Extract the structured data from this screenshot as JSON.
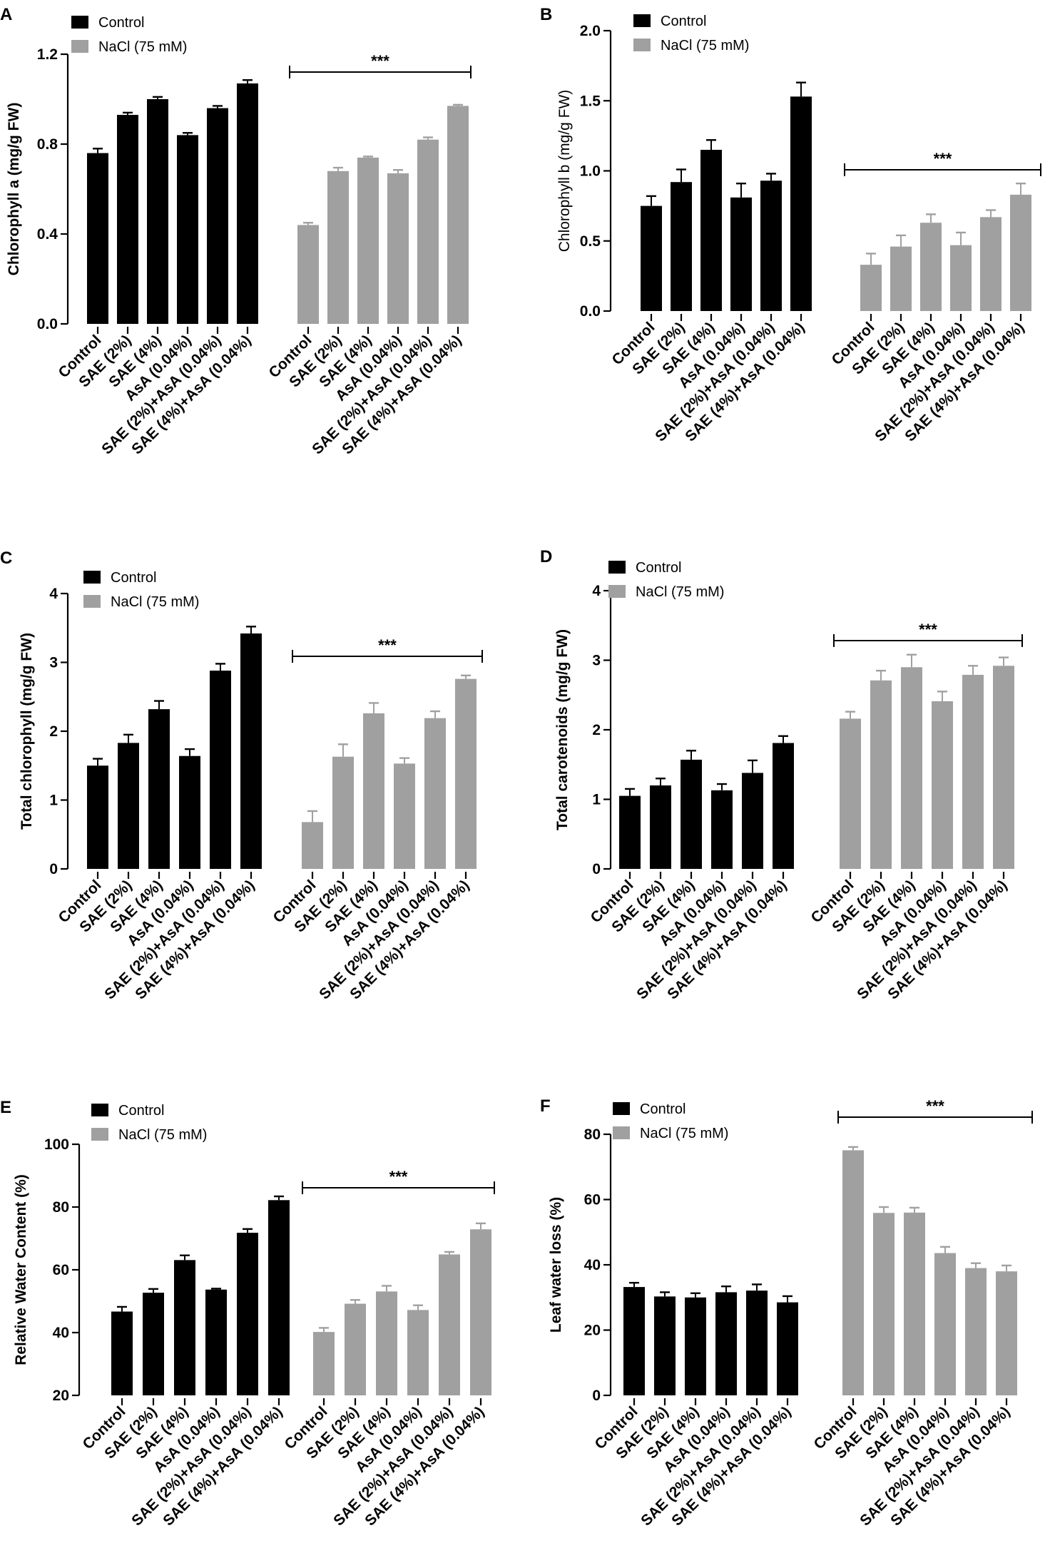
{
  "chart_data": [
    {
      "type": "bar",
      "panel": "A",
      "ylabel": "Chlorophyll a (mg/g FW)",
      "ylim": [
        0,
        1.2
      ],
      "yticks": [
        "0.0",
        "0.4",
        "0.8",
        "1.2"
      ],
      "categories": [
        "Control",
        "SAE (2%)",
        "SAE (4%)",
        "AsA (0.04%)",
        "SAE (2%)+AsA (0.04%)",
        "SAE (4%)+AsA (0.04%)"
      ],
      "series": [
        {
          "name": "Control",
          "color": "#000000",
          "values": [
            0.76,
            0.93,
            1.0,
            0.84,
            0.96,
            1.07
          ],
          "errors": [
            0.02,
            0.01,
            0.01,
            0.01,
            0.01,
            0.015
          ]
        },
        {
          "name": "NaCl (75 mM)",
          "color": "#a0a0a0",
          "values": [
            0.44,
            0.68,
            0.74,
            0.67,
            0.82,
            0.97
          ],
          "errors": [
            0.01,
            0.015,
            0.005,
            0.015,
            0.01,
            0.005
          ]
        }
      ],
      "significance": "***",
      "legend": "top-left"
    },
    {
      "type": "bar",
      "panel": "B",
      "ylabel": "Chlorophyll b (mg/g FW)",
      "ylim": [
        0,
        2.0
      ],
      "yticks": [
        "0.0",
        "0.5",
        "1.0",
        "1.5",
        "2.0"
      ],
      "categories": [
        "Control",
        "SAE (2%)",
        "SAE (4%)",
        "AsA (0.04%)",
        "SAE (2%)+AsA (0.04%)",
        "SAE (4%)+AsA (0.04%)"
      ],
      "series": [
        {
          "name": "Control",
          "color": "#000000",
          "values": [
            0.75,
            0.92,
            1.15,
            0.81,
            0.93,
            1.53
          ],
          "errors": [
            0.07,
            0.09,
            0.07,
            0.1,
            0.05,
            0.1
          ]
        },
        {
          "name": "NaCl (75 mM)",
          "color": "#a0a0a0",
          "values": [
            0.33,
            0.46,
            0.63,
            0.47,
            0.67,
            0.83
          ],
          "errors": [
            0.08,
            0.08,
            0.06,
            0.09,
            0.05,
            0.08
          ]
        }
      ],
      "significance": "***",
      "legend": "top-left"
    },
    {
      "type": "bar",
      "panel": "C",
      "ylabel": "Total chlorophyll (mg/g FW)",
      "ylim": [
        0,
        4
      ],
      "yticks": [
        "0",
        "1",
        "2",
        "3",
        "4"
      ],
      "categories": [
        "Control",
        "SAE (2%)",
        "SAE (4%)",
        "AsA (0.04%)",
        "SAE (2%)+AsA (0.04%)",
        "SAE (4%)+AsA (0.04%)"
      ],
      "series": [
        {
          "name": "Control",
          "color": "#000000",
          "values": [
            1.5,
            1.83,
            2.32,
            1.64,
            2.88,
            3.42
          ],
          "errors": [
            0.1,
            0.12,
            0.12,
            0.1,
            0.1,
            0.1
          ]
        },
        {
          "name": "NaCl (75 mM)",
          "color": "#a0a0a0",
          "values": [
            0.68,
            1.63,
            2.26,
            1.53,
            2.19,
            2.76
          ],
          "errors": [
            0.16,
            0.18,
            0.15,
            0.08,
            0.1,
            0.05
          ]
        }
      ],
      "significance": "***",
      "legend": "top-left"
    },
    {
      "type": "bar",
      "panel": "D",
      "ylabel": "Total carotenoids (mg/g FW)",
      "ylim": [
        0,
        4
      ],
      "yticks": [
        "0",
        "1",
        "2",
        "3",
        "4"
      ],
      "categories": [
        "Control",
        "SAE (2%)",
        "SAE (4%)",
        "AsA (0.04%)",
        "SAE (2%)+AsA (0.04%)",
        "SAE (4%)+AsA (0.04%)"
      ],
      "series": [
        {
          "name": "Control",
          "color": "#000000",
          "values": [
            1.05,
            1.2,
            1.57,
            1.13,
            1.38,
            1.81
          ],
          "errors": [
            0.1,
            0.1,
            0.13,
            0.09,
            0.18,
            0.1
          ]
        },
        {
          "name": "NaCl (75 mM)",
          "color": "#a0a0a0",
          "values": [
            2.16,
            2.71,
            2.9,
            2.41,
            2.79,
            2.92
          ],
          "errors": [
            0.1,
            0.14,
            0.18,
            0.14,
            0.13,
            0.12
          ]
        }
      ],
      "significance": "***",
      "legend": "top-left"
    },
    {
      "type": "bar",
      "panel": "E",
      "ylabel": "Relative Water Content (%)",
      "ylim": [
        20,
        100
      ],
      "yticks": [
        "20",
        "40",
        "60",
        "80",
        "100"
      ],
      "categories": [
        "Control",
        "SAE (2%)",
        "SAE (4%)",
        "AsA (0.04%)",
        "SAE (2%)+AsA (0.04%)",
        "SAE (4%)+AsA (0.04%)"
      ],
      "series": [
        {
          "name": "Control",
          "color": "#000000",
          "values": [
            46.7,
            52.7,
            63.1,
            53.7,
            71.8,
            82.2
          ],
          "errors": [
            1.5,
            1.2,
            1.5,
            0.3,
            1.2,
            1.2
          ]
        },
        {
          "name": "NaCl (75 mM)",
          "color": "#a0a0a0",
          "values": [
            40.2,
            49.2,
            53.1,
            47.2,
            64.9,
            72.9
          ],
          "errors": [
            1.3,
            1.2,
            1.8,
            1.5,
            0.8,
            1.9
          ]
        }
      ],
      "significance": "***",
      "legend": "top-left"
    },
    {
      "type": "bar",
      "panel": "F",
      "ylabel": "Leaf water loss (%)",
      "ylim": [
        0,
        80
      ],
      "yticks": [
        "0",
        "20",
        "40",
        "60",
        "80"
      ],
      "categories": [
        "Control",
        "SAE (2%)",
        "SAE (4%)",
        "AsA (0.04%)",
        "SAE (2%)+AsA (0.04%)",
        "SAE (4%)+AsA (0.04%)"
      ],
      "series": [
        {
          "name": "Control",
          "color": "#000000",
          "values": [
            33.2,
            30.3,
            30.0,
            31.6,
            32.1,
            28.5
          ],
          "errors": [
            1.3,
            1.3,
            1.3,
            1.8,
            1.9,
            1.9
          ]
        },
        {
          "name": "NaCl (75 mM)",
          "color": "#a0a0a0",
          "values": [
            75.1,
            55.9,
            56.0,
            43.6,
            39.0,
            38.0
          ],
          "errors": [
            1.0,
            1.8,
            1.5,
            1.9,
            1.5,
            1.8
          ]
        }
      ],
      "significance": "***",
      "legend": "top-left"
    }
  ]
}
